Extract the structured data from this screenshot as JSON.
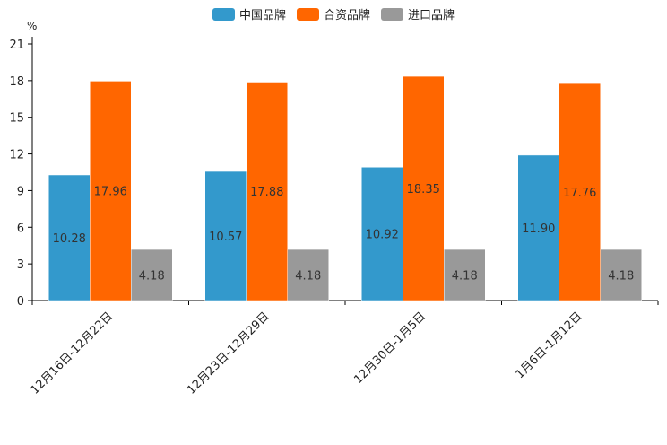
{
  "chart_data": {
    "type": "bar",
    "title": "",
    "ylabel": "%",
    "xlabel": "",
    "ylim": [
      0,
      21
    ],
    "yticks": [
      0,
      3,
      6,
      9,
      12,
      15,
      18,
      21
    ],
    "categories": [
      "12月16日-12月22日",
      "12月23日-12月29日",
      "12月30日-1月5日",
      "1月6日-1月12日"
    ],
    "series": [
      {
        "name": "中国品牌",
        "color": "#3399cc",
        "values": [
          10.28,
          10.57,
          10.92,
          11.9
        ],
        "labels": [
          "10.28",
          "10.57",
          "10.92",
          "11.90"
        ]
      },
      {
        "name": "合资品牌",
        "color": "#ff6600",
        "values": [
          17.96,
          17.88,
          18.35,
          17.76
        ],
        "labels": [
          "17.96",
          "17.88",
          "18.35",
          "17.76"
        ]
      },
      {
        "name": "进口品牌",
        "color": "#999999",
        "values": [
          4.18,
          4.18,
          4.18,
          4.18
        ],
        "labels": [
          "4.18",
          "4.18",
          "4.18",
          "4.18"
        ]
      }
    ],
    "legend_position": "top-center",
    "grid": false
  }
}
